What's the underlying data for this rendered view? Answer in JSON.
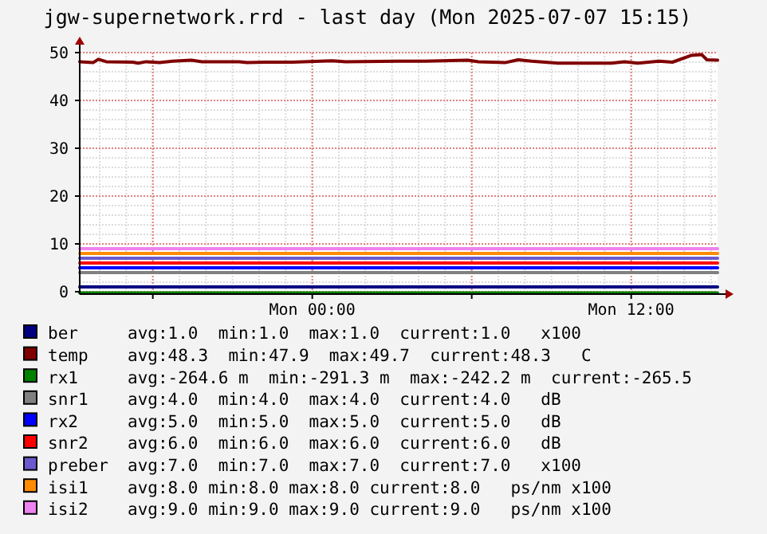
{
  "chart_data": {
    "type": "line",
    "title": "jgw-supernetwork.rrd - last day (Mon 2025-07-07 15:15)",
    "xlim": [
      "2025-07-06T15:15",
      "2025-07-07T15:15"
    ],
    "xticks": [
      {
        "value": "2025-07-06T18:00",
        "label": null
      },
      {
        "value": "2025-07-07T00:00",
        "label": "Mon 00:00"
      },
      {
        "value": "2025-07-07T06:00",
        "label": null
      },
      {
        "value": "2025-07-07T12:00",
        "label": "Mon 12:00"
      }
    ],
    "ylim": [
      -0.5,
      50
    ],
    "yticks": [
      0,
      10,
      20,
      30,
      40,
      50
    ],
    "grid": true,
    "legend": "bottom",
    "marker": "none",
    "line_style": "solid",
    "series": [
      {
        "name": "ber",
        "color": "#000080",
        "x": [
          "2025-07-06T15:15",
          "2025-07-07T15:15"
        ],
        "values": [
          1.0,
          1.0
        ]
      },
      {
        "name": "temp",
        "color": "#800000",
        "x": [
          "2025-07-06T15:15",
          "2025-07-06T15:45",
          "2025-07-06T15:57",
          "2025-07-06T16:15",
          "2025-07-06T17:15",
          "2025-07-06T17:27",
          "2025-07-06T17:45",
          "2025-07-06T18:15",
          "2025-07-06T18:45",
          "2025-07-06T19:27",
          "2025-07-06T19:51",
          "2025-07-06T21:15",
          "2025-07-06T21:33",
          "2025-07-06T22:15",
          "2025-07-06T23:15",
          "2025-07-07T00:45",
          "2025-07-07T01:15",
          "2025-07-07T03:15",
          "2025-07-07T04:15",
          "2025-07-07T05:51",
          "2025-07-07T06:15",
          "2025-07-07T07:15",
          "2025-07-07T07:45",
          "2025-07-07T08:15",
          "2025-07-07T09:15",
          "2025-07-07T11:15",
          "2025-07-07T11:45",
          "2025-07-07T12:15",
          "2025-07-07T13:03",
          "2025-07-07T13:33",
          "2025-07-07T14:15",
          "2025-07-07T14:39",
          "2025-07-07T14:51",
          "2025-07-07T15:15"
        ],
        "values": [
          48.1,
          47.9,
          48.6,
          48.1,
          48.0,
          47.8,
          48.1,
          47.9,
          48.2,
          48.4,
          48.1,
          48.1,
          47.9,
          48.0,
          48.0,
          48.3,
          48.1,
          48.2,
          48.2,
          48.4,
          48.1,
          47.9,
          48.5,
          48.2,
          47.8,
          47.8,
          48.1,
          47.8,
          48.2,
          48.0,
          49.4,
          49.6,
          48.5,
          48.4
        ]
      },
      {
        "name": "rx1",
        "color": "#008000",
        "x": [
          "2025-07-06T15:15",
          "2025-07-07T15:15"
        ],
        "values": [
          -0.26,
          -0.27
        ]
      },
      {
        "name": "snr1",
        "color": "#808080",
        "x": [
          "2025-07-06T15:15",
          "2025-07-07T15:15"
        ],
        "values": [
          4.0,
          4.0
        ]
      },
      {
        "name": "rx2",
        "color": "#0000ff",
        "x": [
          "2025-07-06T15:15",
          "2025-07-07T15:15"
        ],
        "values": [
          5.0,
          5.0
        ]
      },
      {
        "name": "snr2",
        "color": "#ff0000",
        "x": [
          "2025-07-06T15:15",
          "2025-07-07T15:15"
        ],
        "values": [
          6.0,
          6.0
        ]
      },
      {
        "name": "preber",
        "color": "#6a5acd",
        "x": [
          "2025-07-06T15:15",
          "2025-07-07T15:15"
        ],
        "values": [
          7.0,
          7.0
        ]
      },
      {
        "name": "isi1",
        "color": "#ff8c00",
        "x": [
          "2025-07-06T15:15",
          "2025-07-07T15:15"
        ],
        "values": [
          8.0,
          8.0
        ]
      },
      {
        "name": "isi2",
        "color": "#ee82ee",
        "x": [
          "2025-07-06T15:15",
          "2025-07-07T15:15"
        ],
        "values": [
          9.0,
          9.0
        ]
      }
    ],
    "annotations": [
      "avg:1.0  min:1.0  max:1.0  current:1.0   x100",
      "avg:48.3  min:47.9  max:49.7  current:48.3   C",
      "avg:-264.6 m  min:-291.3 m  max:-242.2 m  current:-265.5",
      "avg:4.0  min:4.0  max:4.0  current:4.0   dB",
      "avg:5.0  min:5.0  max:5.0  current:5.0   dB",
      "avg:6.0  min:6.0  max:6.0  current:6.0   dB",
      "avg:7.0  min:7.0  max:7.0  current:7.0   x100",
      "avg:8.0 min:8.0 max:8.0 current:8.0   ps/nm x100",
      "avg:9.0 min:9.0 max:9.0 current:9.0   ps/nm x100"
    ]
  }
}
